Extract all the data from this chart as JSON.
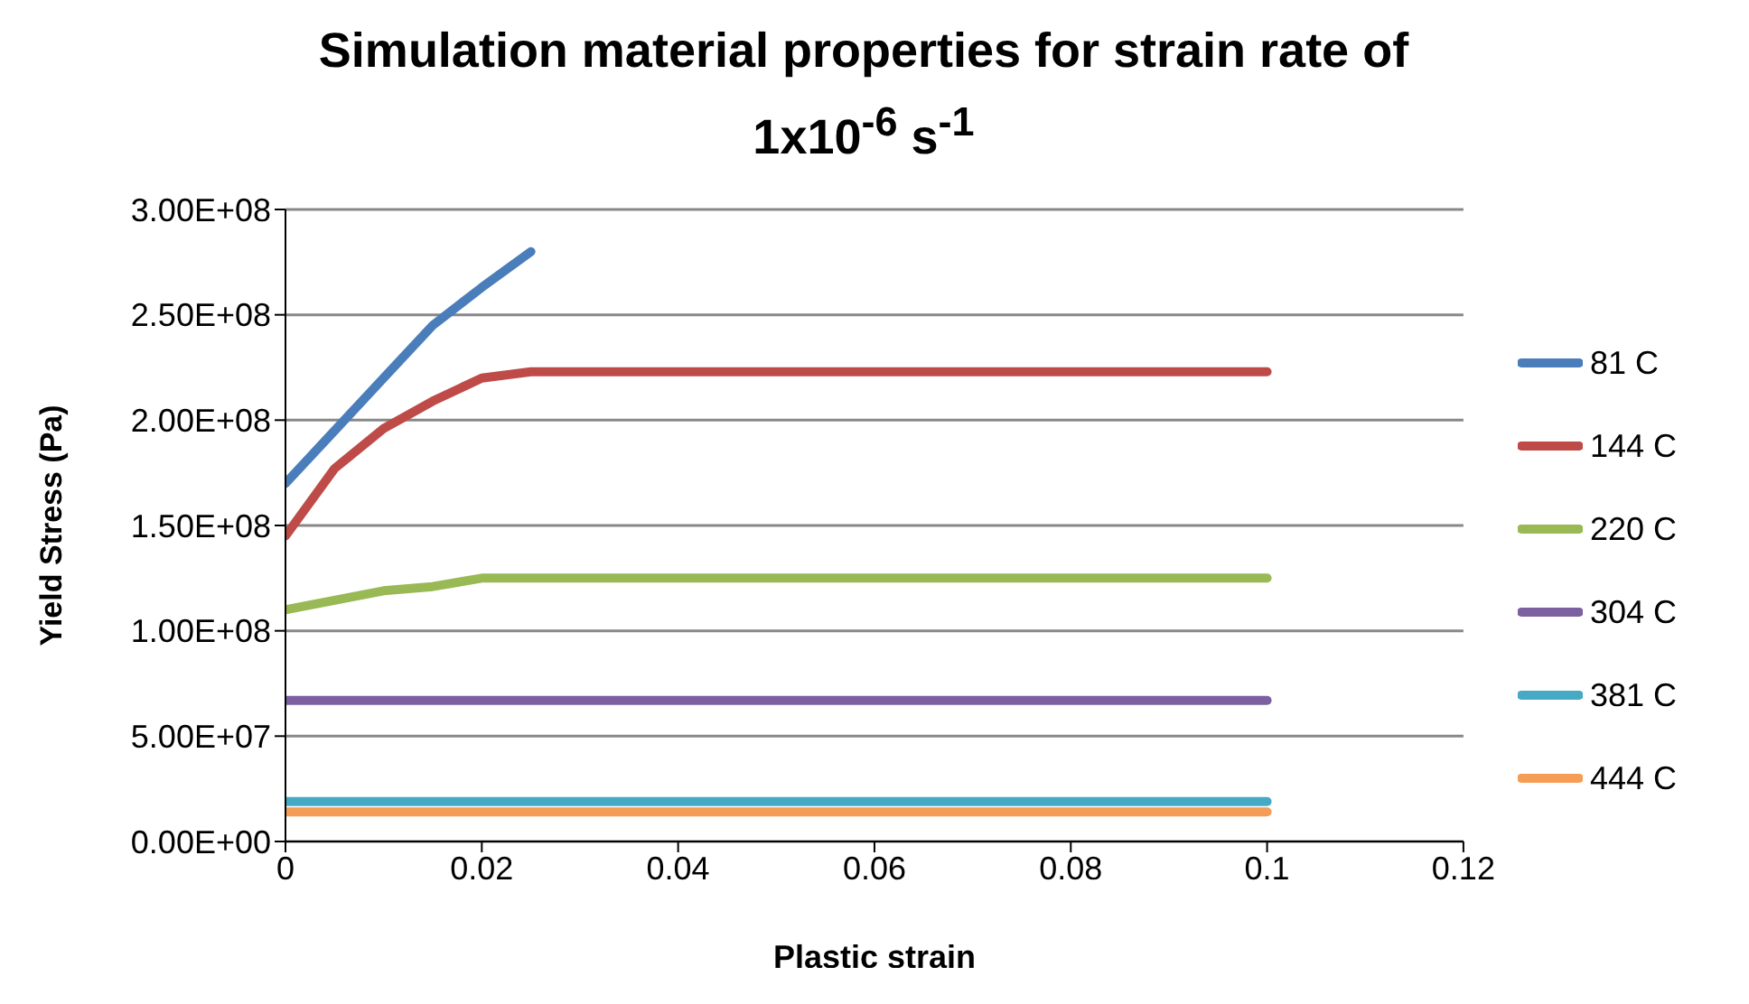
{
  "chart_data": {
    "type": "line",
    "title": "Simulation material properties for strain rate of 1x10$^{-6}$ s$^{-1}$",
    "xlabel": "Plastic strain",
    "ylabel": "Yield Stress (Pa)",
    "xlim": [
      0,
      0.12
    ],
    "xticks": [
      0,
      0.02,
      0.04,
      0.06,
      0.08,
      0.1,
      0.12
    ],
    "ylim": [
      0,
      300000000
    ],
    "yticks": [
      {
        "value": 0,
        "label": "0.00E+00"
      },
      {
        "value": 50000000,
        "label": "5.00E+07"
      },
      {
        "value": 100000000,
        "label": "1.00E+08"
      },
      {
        "value": 150000000,
        "label": "1.50E+08"
      },
      {
        "value": 200000000,
        "label": "2.00E+08"
      },
      {
        "value": 250000000,
        "label": "2.50E+08"
      },
      {
        "value": 300000000,
        "label": "3.00E+08"
      }
    ],
    "grid": "y",
    "legend": "right",
    "marker": "none",
    "line_style": "solid",
    "series": [
      {
        "name": "81 C",
        "color": "#4a7ebb",
        "x": [
          0,
          0.005,
          0.01,
          0.015,
          0.02,
          0.025
        ],
        "values": [
          170000000,
          195000000,
          220000000,
          245000000,
          263000000,
          280000000
        ]
      },
      {
        "name": "144 C",
        "color": "#be4b48",
        "x": [
          0,
          0.005,
          0.01,
          0.015,
          0.02,
          0.025,
          0.1
        ],
        "values": [
          145000000,
          177000000,
          196000000,
          209000000,
          220000000,
          223000000,
          223000000
        ]
      },
      {
        "name": "220 C",
        "color": "#98b954",
        "x": [
          0,
          0.01,
          0.015,
          0.02,
          0.1
        ],
        "values": [
          110000000,
          119000000,
          121000000,
          125000000,
          125000000
        ]
      },
      {
        "name": "304 C",
        "color": "#7d60a0",
        "x": [
          0,
          0.1
        ],
        "values": [
          67000000,
          67000000
        ]
      },
      {
        "name": "381 C",
        "color": "#46aac5",
        "x": [
          0,
          0.1
        ],
        "values": [
          19000000,
          19000000
        ]
      },
      {
        "name": "444 C",
        "color": "#f59d56",
        "x": [
          0,
          0.1
        ],
        "values": [
          14000000,
          14000000
        ]
      }
    ]
  }
}
